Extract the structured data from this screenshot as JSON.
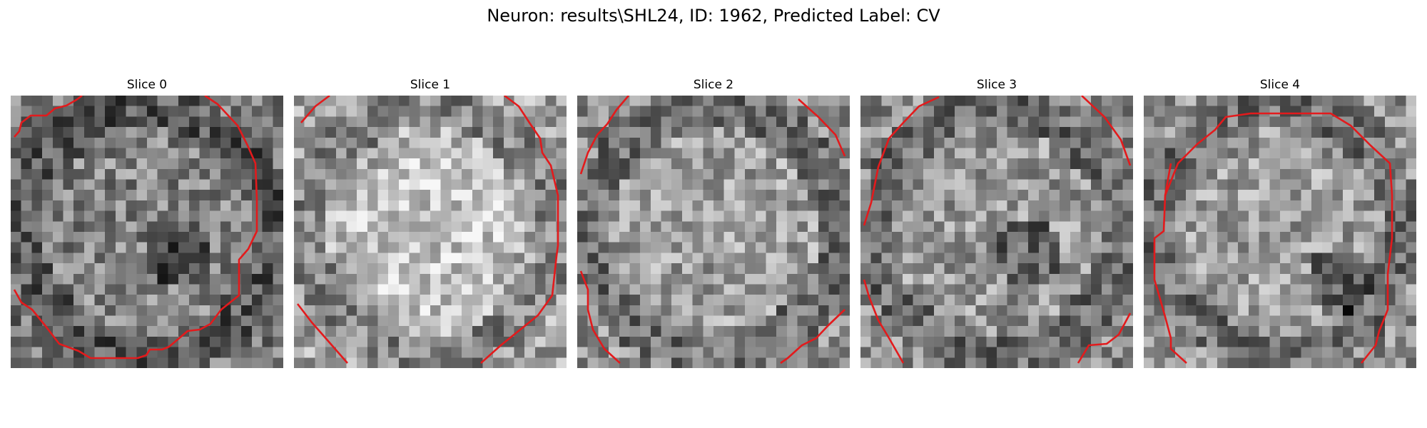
{
  "figure": {
    "suptitle": "Neuron: results\\SHL24, ID: 1962, Predicted Label: CV",
    "contour_color": "#e31a1c"
  },
  "panels": [
    {
      "title": "Slice 0",
      "mean_brightness": 0.52,
      "spot": "dark-right-center"
    },
    {
      "title": "Slice 1",
      "mean_brightness": 0.7,
      "spot": "bright-center"
    },
    {
      "title": "Slice 2",
      "mean_brightness": 0.62,
      "spot": "none"
    },
    {
      "title": "Slice 3",
      "mean_brightness": 0.6,
      "spot": "dark-right-center"
    },
    {
      "title": "Slice 4",
      "mean_brightness": 0.62,
      "spot": "dark-lower-right"
    }
  ]
}
